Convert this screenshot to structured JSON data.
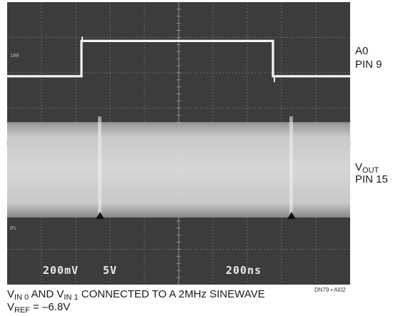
{
  "chart_data": {
    "type": "line",
    "title": "",
    "xlabel": "",
    "ylabel": "",
    "grid": true,
    "x": [
      0,
      2.6,
      2.6,
      9.3,
      9.3,
      12
    ],
    "series": [
      {
        "name": "A0 PIN 9",
        "values": [
          5.9,
          5.9,
          6.9,
          6.9,
          5.9,
          5.9
        ]
      },
      {
        "name": "V_OUT PIN 15",
        "band": {
          "low": 1.9,
          "high": 4.6
        }
      }
    ],
    "xlim": [
      0,
      12
    ],
    "ylim": [
      0,
      8
    ],
    "scope_settings": {
      "ch1_scale": "200mV",
      "ch2_scale": "5V",
      "time_scale": "200ns"
    },
    "marker_labels": {
      "upper": "100",
      "lower": "0%"
    }
  },
  "annotations": {
    "a0": {
      "line1": "A0",
      "line2": "PIN 9"
    },
    "vout": {
      "main": "V",
      "sub": "OUT",
      "line2": "PIN 15"
    }
  },
  "caption": {
    "line1": {
      "v1": "V",
      "sub1": "IN 0",
      "mid": " AND V",
      "sub2": "IN 1",
      "rest": " CONNECTED TO A 2MHz SINEWAVE"
    },
    "line2": {
      "v": "V",
      "sub": "REF",
      "rest": " = –6.8V"
    }
  },
  "figure_id": "DN79 • AI02"
}
